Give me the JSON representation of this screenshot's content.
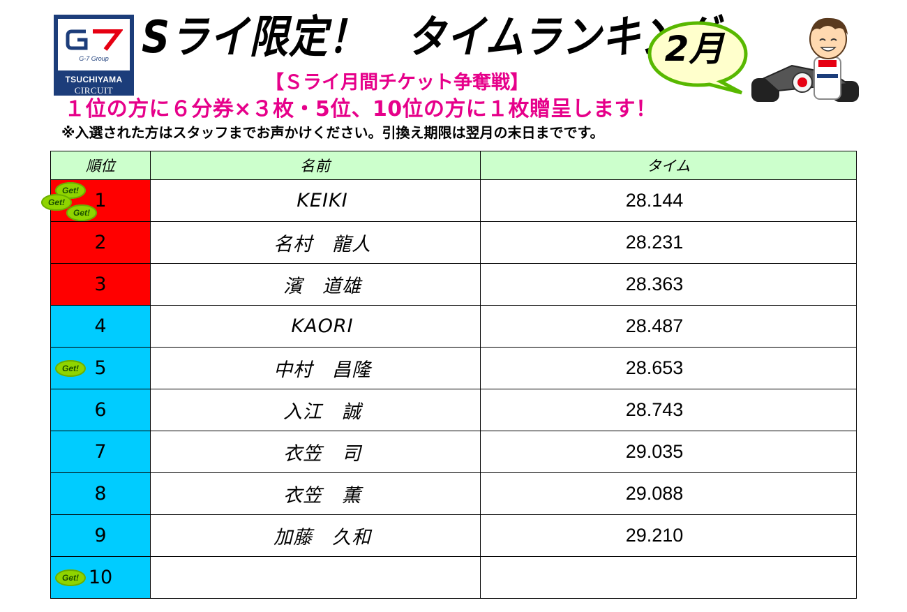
{
  "logo": {
    "mark": "G7",
    "group": "G-7 Group",
    "name": "TSUCHIYAMA",
    "circuit": "CIRCUIT"
  },
  "header": {
    "title": "Sライ限定！　タイムランキング",
    "month": "2月",
    "subtitle": "【Ｓライ月間チケット争奪戦】",
    "prize": "１位の方に６分券×３枚・5位、10位の方に１枚贈呈します！",
    "notice": "※入選された方はスタッフまでお声かけください。引換え期限は翌月の末日までです。"
  },
  "colors": {
    "top_rank": "#ff0000",
    "other_rank": "#00ccff",
    "header_row": "#ccffcc",
    "accent_text": "#e6008a",
    "get_badge": "#8fd400"
  },
  "table": {
    "headers": {
      "rank": "順位",
      "name": "名前",
      "time": "タイム"
    },
    "badge_label": "Get!",
    "rows": [
      {
        "rank": "1",
        "name": "KEIKI",
        "time": "28.144"
      },
      {
        "rank": "2",
        "name": "名村　龍人",
        "time": "28.231"
      },
      {
        "rank": "3",
        "name": "濱　道雄",
        "time": "28.363"
      },
      {
        "rank": "4",
        "name": "KAORI",
        "time": "28.487"
      },
      {
        "rank": "5",
        "name": "中村　昌隆",
        "time": "28.653"
      },
      {
        "rank": "6",
        "name": "入江　誠",
        "time": "28.743"
      },
      {
        "rank": "7",
        "name": "衣笠　司",
        "time": "29.035"
      },
      {
        "rank": "8",
        "name": "衣笠　薫",
        "time": "29.088"
      },
      {
        "rank": "9",
        "name": "加藤　久和",
        "time": "29.210"
      },
      {
        "rank": "10",
        "name": "",
        "time": ""
      }
    ]
  }
}
